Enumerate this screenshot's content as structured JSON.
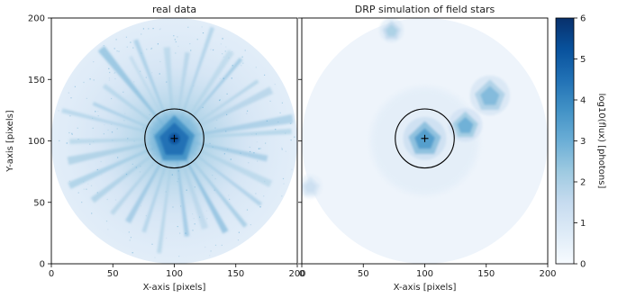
{
  "chart_data": [
    {
      "type": "heatmap",
      "title": "real data",
      "xlabel": "X-axis [pixels]",
      "ylabel": "Y-axis [pixels]",
      "xlim": [
        0,
        200
      ],
      "ylim": [
        0,
        200
      ],
      "x_ticks": [
        "0",
        "50",
        "100",
        "150",
        "200"
      ],
      "y_ticks": [
        "0",
        "50",
        "100",
        "150",
        "200"
      ],
      "field_of_view": {
        "center": [
          100,
          100
        ],
        "radius": 100
      },
      "aperture": {
        "center": [
          100,
          102
        ],
        "radius": 24
      },
      "source_marker": {
        "x": 100,
        "y": 102,
        "symbol": "+"
      },
      "features": [
        {
          "name": "diffraction spikes",
          "center": [
            100,
            102
          ],
          "count": 30,
          "length": 96,
          "peak_log_flux": 2.0
        },
        {
          "name": "core",
          "center": [
            100,
            102
          ],
          "radius": 22,
          "peak_log_flux": 5.5
        }
      ]
    },
    {
      "type": "heatmap",
      "title": "DRP simulation of field stars",
      "xlabel": "X-axis [pixels]",
      "ylabel": "",
      "xlim": [
        0,
        200
      ],
      "ylim": [
        0,
        200
      ],
      "x_ticks": [
        "0",
        "50",
        "100",
        "150",
        "200"
      ],
      "y_ticks": [],
      "field_of_view": {
        "center": [
          100,
          100
        ],
        "radius": 100
      },
      "aperture": {
        "center": [
          100,
          102
        ],
        "radius": 24
      },
      "source_marker": {
        "x": 100,
        "y": 102,
        "symbol": "+"
      },
      "features": [
        {
          "name": "star",
          "x": 100,
          "y": 102,
          "size": 14,
          "peak_log_flux": 3.5
        },
        {
          "name": "star",
          "x": 133,
          "y": 113,
          "size": 11,
          "peak_log_flux": 3.0
        },
        {
          "name": "star",
          "x": 153,
          "y": 137,
          "size": 13,
          "peak_log_flux": 2.7
        },
        {
          "name": "star",
          "x": 73,
          "y": 190,
          "size": 8,
          "peak_log_flux": 2.0
        },
        {
          "name": "star",
          "x": 7,
          "y": 63,
          "size": 8,
          "peak_log_flux": 1.3
        }
      ]
    }
  ],
  "colorbar": {
    "label": "log10(flux) [photons]",
    "min": 0,
    "max": 6,
    "ticks": [
      "0",
      "1",
      "2",
      "3",
      "4",
      "5",
      "6"
    ],
    "colormap": [
      "#f7fbff",
      "#deebf7",
      "#c6dbef",
      "#9ecae1",
      "#6baed6",
      "#4292c6",
      "#2171b5",
      "#08519c",
      "#08306b"
    ]
  }
}
